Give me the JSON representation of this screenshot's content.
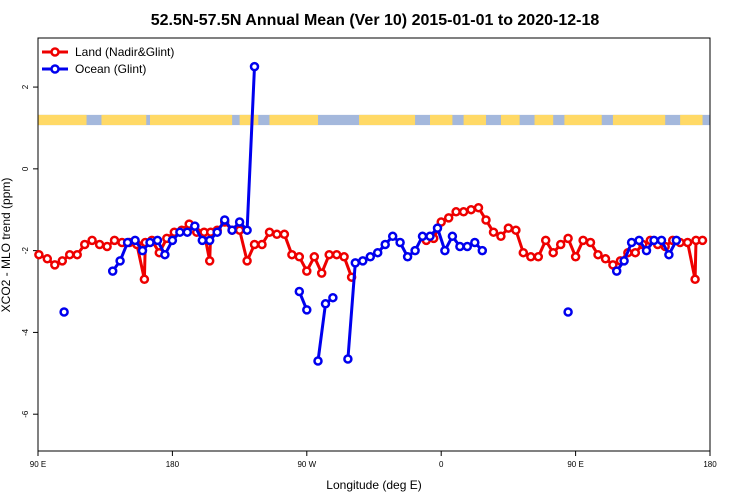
{
  "chart_data": {
    "type": "line",
    "title": "52.5N-57.5N Annual Mean (Ver 10)   2015-01-01 to 2020-12-18",
    "xlabel": "Longitude (deg E)",
    "ylabel": "XCO2 - MLO trend (ppm)",
    "xlim": [
      90,
      450
    ],
    "ylim": [
      -6.9,
      3.2
    ],
    "x_ticks": [
      {
        "value": 90,
        "label": "90 E"
      },
      {
        "value": 162,
        "label": "180"
      },
      {
        "value": 234,
        "label": "90 W"
      },
      {
        "value": 306,
        "label": "0"
      },
      {
        "value": 378,
        "label": "90 E"
      },
      {
        "value": 450,
        "label": "180"
      }
    ],
    "y_ticks": [
      {
        "value": 2,
        "label": "2"
      },
      {
        "value": 0,
        "label": "0"
      },
      {
        "value": -2,
        "label": "-2"
      },
      {
        "value": -4,
        "label": "-4"
      },
      {
        "value": -6,
        "label": "-6"
      }
    ],
    "legend": {
      "placement": "top-left"
    },
    "landmask_band": {
      "y_range": [
        1.07,
        1.32
      ],
      "land_color": "#ffd966",
      "ocean_color": "#a4b8dc"
    },
    "series": [
      {
        "name": "Land (Nadir&Glint)",
        "color": "#ee0000",
        "segments": [
          [
            [
              90.5,
              -2.1
            ],
            [
              95,
              -2.2
            ],
            [
              99,
              -2.35
            ],
            [
              103,
              -2.25
            ],
            [
              107,
              -2.1
            ],
            [
              111,
              -2.1
            ],
            [
              115,
              -1.85
            ],
            [
              119,
              -1.75
            ],
            [
              123,
              -1.85
            ],
            [
              127,
              -1.9
            ],
            [
              131,
              -1.75
            ],
            [
              135,
              -1.8
            ],
            [
              139,
              -1.8
            ],
            [
              143,
              -1.85
            ],
            [
              147,
              -2.7
            ],
            [
              147.5,
              -1.8
            ],
            [
              151,
              -1.75
            ],
            [
              155,
              -2.05
            ],
            [
              159,
              -1.7
            ],
            [
              163,
              -1.55
            ],
            [
              167,
              -1.5
            ],
            [
              171,
              -1.35
            ],
            [
              175,
              -1.55
            ],
            [
              179,
              -1.55
            ],
            [
              182,
              -2.25
            ],
            [
              182.5,
              -1.55
            ],
            [
              186,
              -1.5
            ],
            [
              190,
              -1.3
            ],
            [
              194,
              -1.5
            ],
            [
              198,
              -1.5
            ],
            [
              202,
              -2.25
            ],
            [
              206,
              -1.85
            ],
            [
              210,
              -1.85
            ],
            [
              214,
              -1.55
            ],
            [
              218,
              -1.6
            ],
            [
              222,
              -1.6
            ],
            [
              226,
              -2.1
            ],
            [
              230,
              -2.15
            ],
            [
              234,
              -2.5
            ],
            [
              238,
              -2.15
            ],
            [
              242,
              -2.55
            ],
            [
              246,
              -2.1
            ],
            [
              250,
              -2.1
            ],
            [
              254,
              -2.15
            ],
            [
              258,
              -2.65
            ]
          ],
          [
            [
              298,
              -1.75
            ],
            [
              302,
              -1.7
            ],
            [
              306,
              -1.3
            ],
            [
              310,
              -1.2
            ],
            [
              314,
              -1.05
            ],
            [
              318,
              -1.05
            ],
            [
              322,
              -1.0
            ],
            [
              326,
              -0.95
            ],
            [
              330,
              -1.25
            ],
            [
              334,
              -1.55
            ],
            [
              338,
              -1.65
            ],
            [
              342,
              -1.45
            ],
            [
              346,
              -1.5
            ],
            [
              350,
              -2.05
            ],
            [
              354,
              -2.15
            ],
            [
              358,
              -2.15
            ],
            [
              362,
              -1.75
            ],
            [
              366,
              -2.05
            ],
            [
              370,
              -1.85
            ],
            [
              374,
              -1.7
            ],
            [
              378,
              -2.15
            ],
            [
              382,
              -1.75
            ],
            [
              386,
              -1.8
            ],
            [
              390,
              -2.1
            ],
            [
              394,
              -2.2
            ],
            [
              398,
              -2.35
            ],
            [
              402,
              -2.25
            ],
            [
              406,
              -2.05
            ],
            [
              410,
              -2.05
            ],
            [
              414,
              -1.85
            ],
            [
              418,
              -1.75
            ],
            [
              422,
              -1.85
            ],
            [
              426,
              -1.9
            ],
            [
              430,
              -1.75
            ],
            [
              434,
              -1.8
            ],
            [
              438,
              -1.8
            ],
            [
              442,
              -2.7
            ],
            [
              442.5,
              -1.75
            ],
            [
              446,
              -1.75
            ]
          ]
        ]
      },
      {
        "name": "Ocean (Glint)",
        "color": "#0000ee",
        "segments": [
          [
            [
              104,
              -3.5
            ]
          ],
          [
            [
              130,
              -2.5
            ],
            [
              134,
              -2.25
            ],
            [
              138,
              -1.8
            ],
            [
              142,
              -1.75
            ],
            [
              146,
              -2.0
            ],
            [
              150,
              -1.8
            ],
            [
              154,
              -1.75
            ],
            [
              158,
              -2.1
            ],
            [
              162,
              -1.75
            ],
            [
              166,
              -1.55
            ],
            [
              170,
              -1.55
            ],
            [
              174,
              -1.4
            ],
            [
              178,
              -1.75
            ],
            [
              182,
              -1.75
            ],
            [
              186,
              -1.55
            ],
            [
              190,
              -1.25
            ],
            [
              194,
              -1.5
            ],
            [
              198,
              -1.3
            ],
            [
              202,
              -1.5
            ],
            [
              206,
              2.5
            ]
          ],
          [
            [
              230,
              -3.0
            ],
            [
              234,
              -3.45
            ]
          ],
          [
            [
              240,
              -4.7
            ],
            [
              244,
              -3.3
            ],
            [
              248,
              -3.15
            ]
          ],
          [
            [
              256,
              -4.65
            ],
            [
              260,
              -2.3
            ],
            [
              264,
              -2.25
            ],
            [
              268,
              -2.15
            ],
            [
              272,
              -2.05
            ],
            [
              276,
              -1.85
            ],
            [
              280,
              -1.65
            ],
            [
              284,
              -1.8
            ],
            [
              288,
              -2.15
            ],
            [
              292,
              -2.0
            ],
            [
              296,
              -1.65
            ],
            [
              300,
              -1.65
            ],
            [
              304,
              -1.45
            ],
            [
              308,
              -2.0
            ],
            [
              312,
              -1.65
            ],
            [
              316,
              -1.9
            ],
            [
              320,
              -1.9
            ],
            [
              324,
              -1.8
            ],
            [
              328,
              -2.0
            ]
          ],
          [
            [
              374,
              -3.5
            ]
          ],
          [
            [
              400,
              -2.5
            ],
            [
              404,
              -2.25
            ],
            [
              408,
              -1.8
            ],
            [
              412,
              -1.75
            ],
            [
              416,
              -2.0
            ],
            [
              420,
              -1.75
            ],
            [
              424,
              -1.75
            ],
            [
              428,
              -2.1
            ],
            [
              432,
              -1.75
            ]
          ]
        ]
      }
    ]
  }
}
